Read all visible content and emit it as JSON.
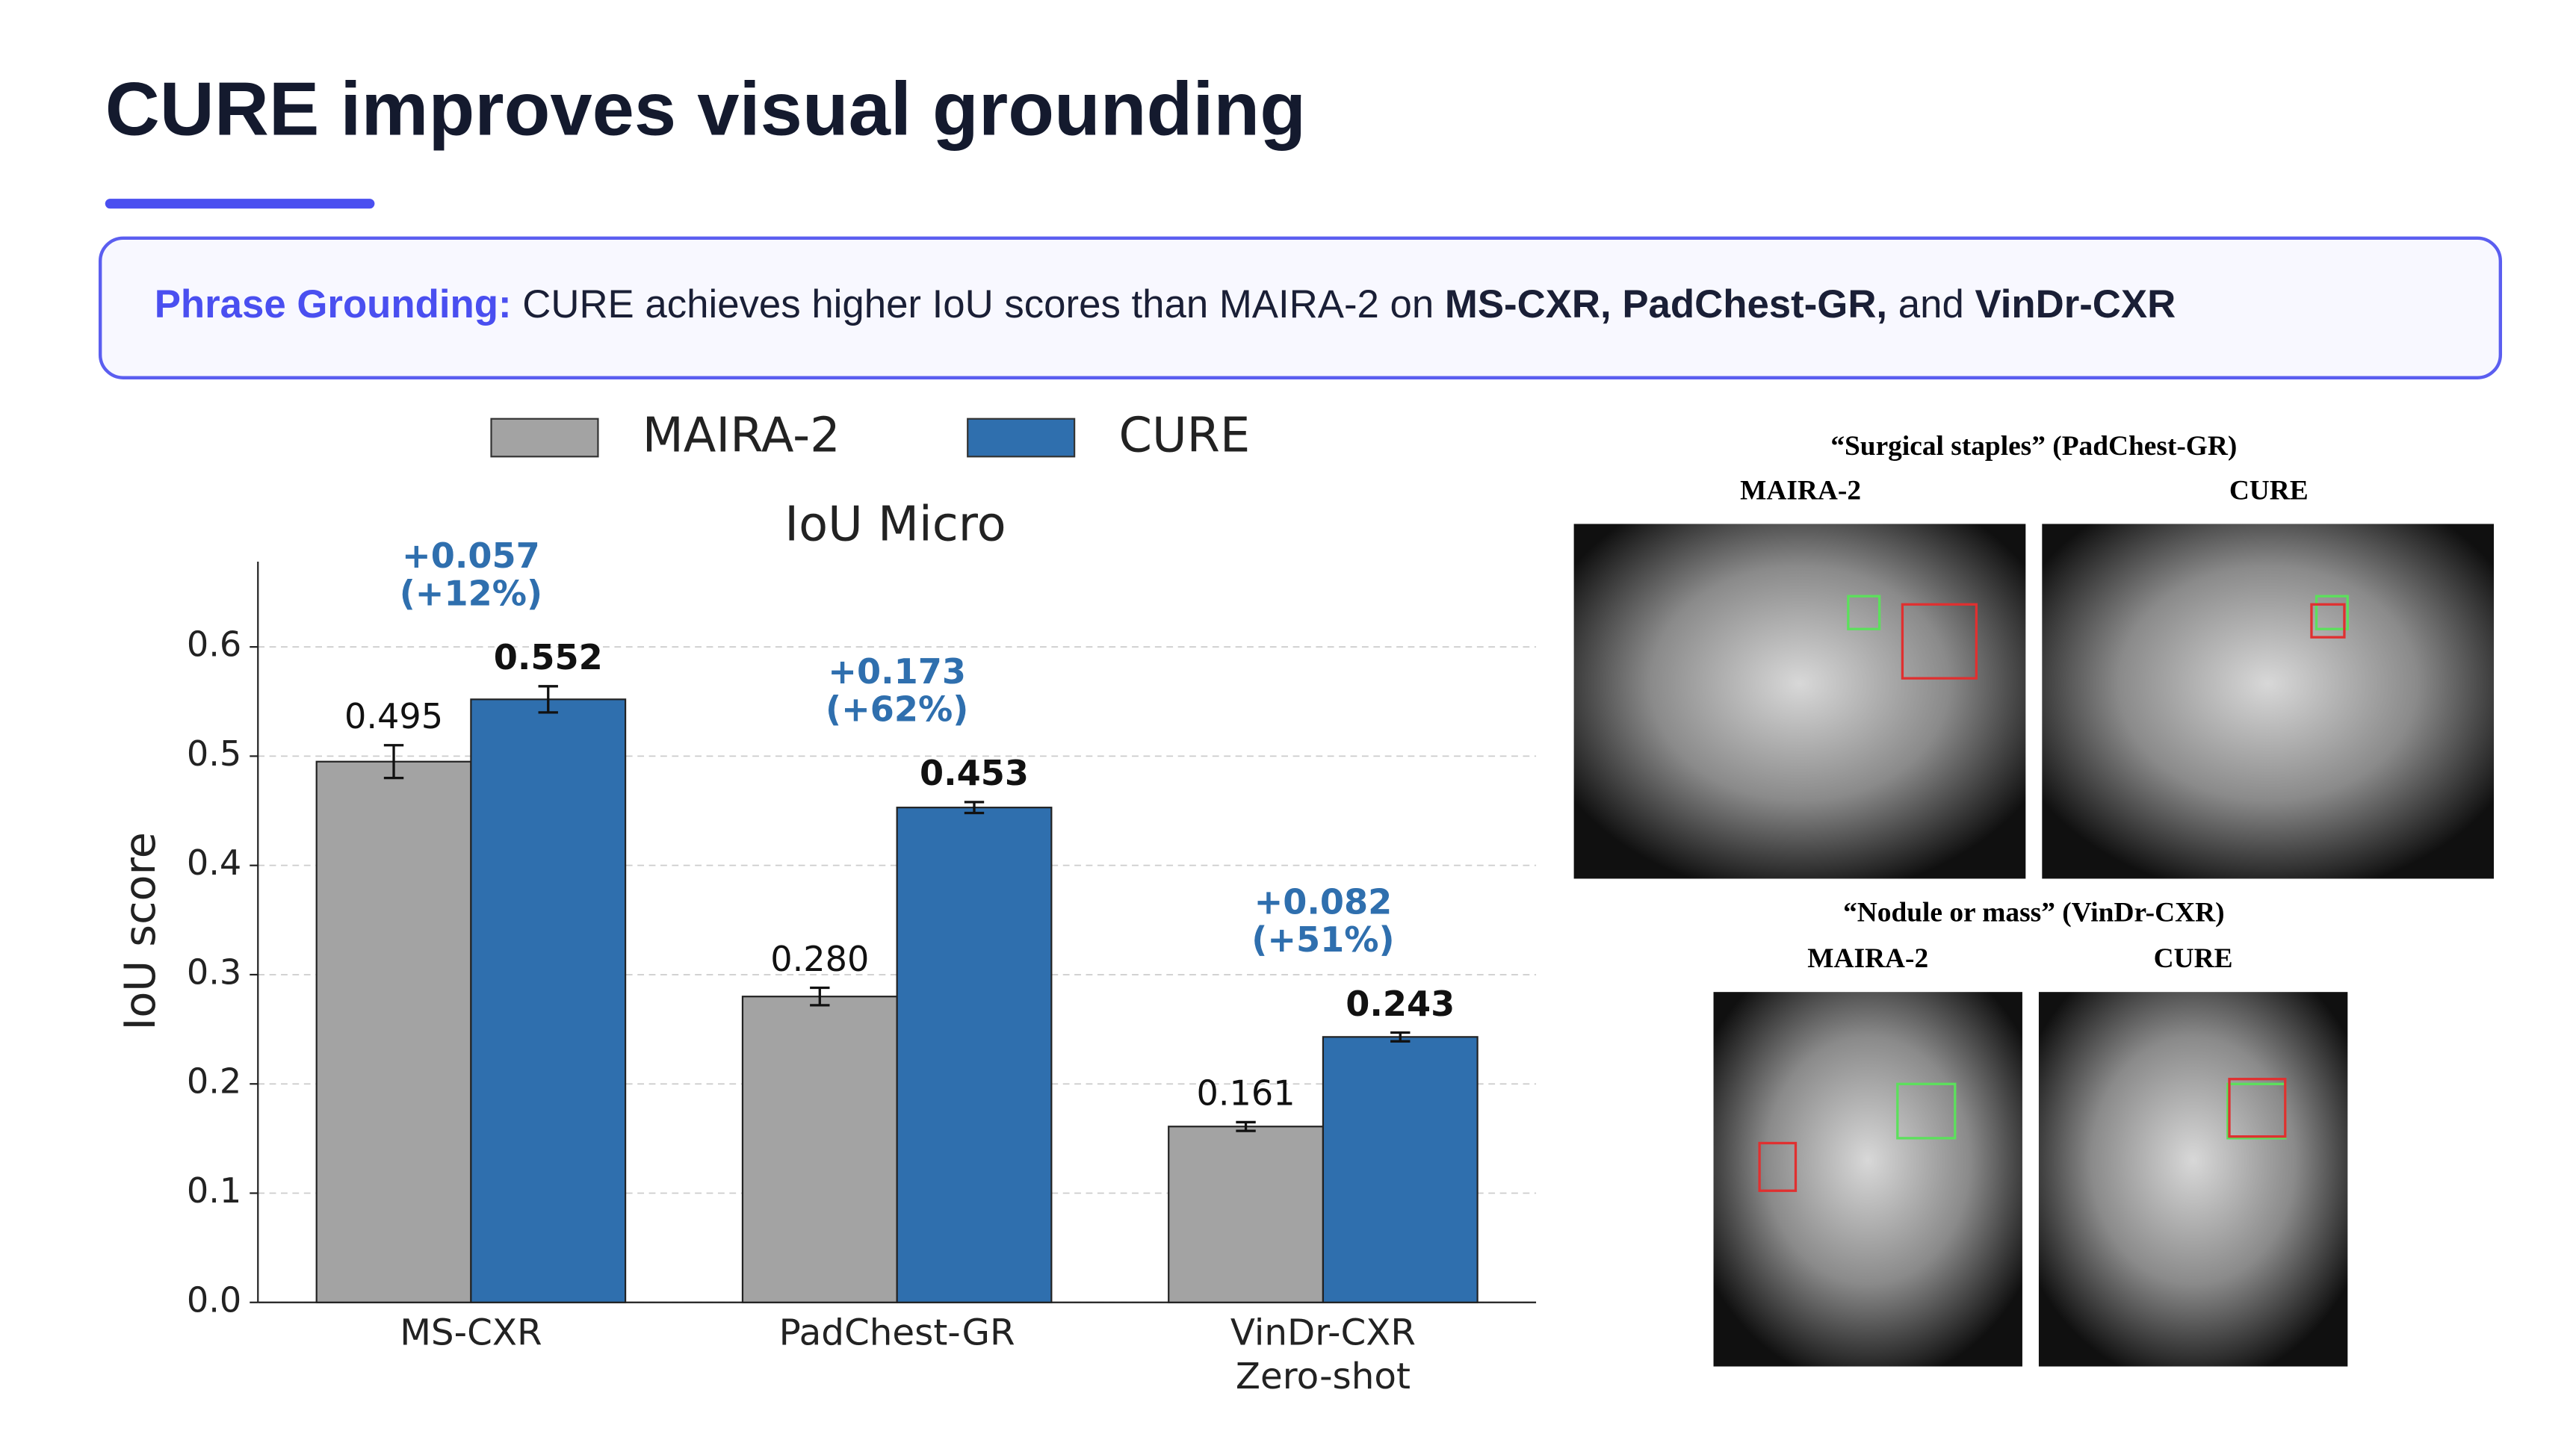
{
  "title": "CURE improves visual grounding",
  "callout": {
    "segments": [
      {
        "text": "Phrase Grounding:",
        "style": "label"
      },
      {
        "text": " CURE achieves higher IoU scores than MAIRA-2 on ",
        "style": "normal"
      },
      {
        "text": "MS-CXR, PadChest-GR,",
        "style": "bold"
      },
      {
        "text": " and ",
        "style": "normal"
      },
      {
        "text": "VinDr-CXR",
        "style": "bold"
      }
    ]
  },
  "chart_data": {
    "type": "bar",
    "title": "IoU Micro",
    "y_label": "IoU score",
    "categories": [
      "MS-CXR",
      "PadChest-GR",
      "VinDr-CXR\nZero-shot"
    ],
    "series": [
      {
        "name": "MAIRA-2",
        "color": "#a3a3a3",
        "values": [
          0.495,
          0.28,
          0.161
        ],
        "value_labels": [
          "0.495",
          "0.280",
          "0.161"
        ],
        "errors": [
          0.015,
          0.008,
          0.004
        ]
      },
      {
        "name": "CURE",
        "color": "#2f6fae",
        "values": [
          0.552,
          0.453,
          0.243
        ],
        "value_labels": [
          "0.552",
          "0.453",
          "0.243"
        ],
        "errors": [
          0.012,
          0.005,
          0.004
        ]
      }
    ],
    "annotations": [
      [
        "+0.057",
        "(+12%)"
      ],
      [
        "+0.173",
        "(+62%)"
      ],
      [
        "+0.082",
        "(+51%)"
      ]
    ],
    "annotation_color": "#2f6fae",
    "ylim": [
      0,
      0.678
    ],
    "yticks": [
      {
        "value": 0,
        "label": "0.0"
      },
      0.1,
      0.2,
      0.3,
      0.4,
      0.5,
      0.6
    ],
    "grid": true,
    "legend": "top"
  },
  "examples": [
    {
      "caption": "“Surgical staples” (PadChest-GR)",
      "labels": [
        "MAIRA-2",
        "CURE"
      ]
    },
    {
      "caption": "“Nodule or mass” (VinDr-CXR)",
      "labels": [
        "MAIRA-2",
        "CURE"
      ]
    }
  ]
}
